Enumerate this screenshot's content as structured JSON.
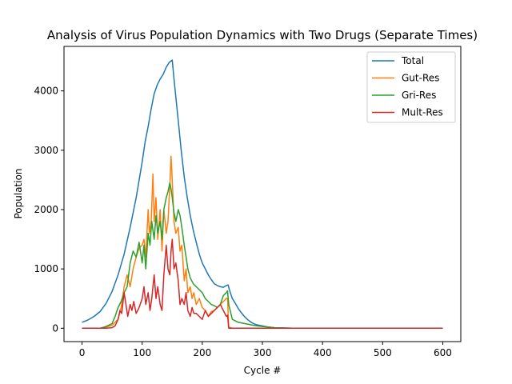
{
  "chart_data": {
    "type": "line",
    "title": "Analysis of Virus Population Dynamics with Two Drugs (Separate Times)",
    "xlabel": "Cycle #",
    "ylabel": "Population",
    "xlim": [
      -30,
      630
    ],
    "ylim": [
      -225,
      4750
    ],
    "xticks": [
      0,
      100,
      200,
      300,
      400,
      500,
      600
    ],
    "yticks": [
      0,
      1000,
      2000,
      3000,
      4000
    ],
    "legend": {
      "placement": "top-right"
    },
    "grid": false,
    "series": [
      {
        "name": "Total",
        "color": "#1f77b4",
        "points": [
          [
            0,
            100
          ],
          [
            10,
            140
          ],
          [
            20,
            200
          ],
          [
            30,
            280
          ],
          [
            40,
            420
          ],
          [
            50,
            620
          ],
          [
            60,
            900
          ],
          [
            70,
            1250
          ],
          [
            80,
            1700
          ],
          [
            90,
            2200
          ],
          [
            100,
            2800
          ],
          [
            105,
            3150
          ],
          [
            110,
            3400
          ],
          [
            115,
            3700
          ],
          [
            120,
            3950
          ],
          [
            125,
            4100
          ],
          [
            130,
            4200
          ],
          [
            135,
            4280
          ],
          [
            140,
            4400
          ],
          [
            145,
            4480
          ],
          [
            150,
            4520
          ],
          [
            152,
            4300
          ],
          [
            155,
            4000
          ],
          [
            160,
            3500
          ],
          [
            165,
            3000
          ],
          [
            170,
            2550
          ],
          [
            175,
            2200
          ],
          [
            180,
            1900
          ],
          [
            185,
            1650
          ],
          [
            190,
            1450
          ],
          [
            195,
            1250
          ],
          [
            200,
            1100
          ],
          [
            205,
            1000
          ],
          [
            210,
            900
          ],
          [
            215,
            820
          ],
          [
            220,
            750
          ],
          [
            225,
            720
          ],
          [
            230,
            700
          ],
          [
            235,
            690
          ],
          [
            240,
            720
          ],
          [
            243,
            730
          ],
          [
            245,
            650
          ],
          [
            250,
            500
          ],
          [
            255,
            420
          ],
          [
            260,
            330
          ],
          [
            265,
            260
          ],
          [
            270,
            200
          ],
          [
            275,
            150
          ],
          [
            280,
            110
          ],
          [
            285,
            80
          ],
          [
            290,
            60
          ],
          [
            300,
            40
          ],
          [
            310,
            20
          ],
          [
            320,
            10
          ],
          [
            330,
            5
          ],
          [
            350,
            2
          ],
          [
            400,
            0
          ],
          [
            500,
            0
          ],
          [
            600,
            0
          ]
        ]
      },
      {
        "name": "Gut-Res",
        "color": "#ff7f0e",
        "points": [
          [
            0,
            0
          ],
          [
            20,
            0
          ],
          [
            30,
            0
          ],
          [
            40,
            20
          ],
          [
            50,
            50
          ],
          [
            60,
            150
          ],
          [
            65,
            350
          ],
          [
            70,
            700
          ],
          [
            75,
            900
          ],
          [
            80,
            700
          ],
          [
            85,
            1000
          ],
          [
            90,
            1200
          ],
          [
            95,
            1350
          ],
          [
            100,
            1400
          ],
          [
            103,
            1500
          ],
          [
            106,
            1200
          ],
          [
            110,
            2000
          ],
          [
            112,
            1600
          ],
          [
            115,
            1800
          ],
          [
            118,
            2600
          ],
          [
            120,
            1800
          ],
          [
            123,
            2200
          ],
          [
            126,
            1500
          ],
          [
            130,
            2000
          ],
          [
            133,
            1300
          ],
          [
            136,
            2000
          ],
          [
            140,
            1600
          ],
          [
            143,
            1800
          ],
          [
            146,
            2400
          ],
          [
            148,
            2900
          ],
          [
            150,
            2500
          ],
          [
            153,
            1800
          ],
          [
            156,
            1600
          ],
          [
            160,
            1700
          ],
          [
            163,
            1300
          ],
          [
            166,
            1400
          ],
          [
            170,
            800
          ],
          [
            173,
            1000
          ],
          [
            176,
            600
          ],
          [
            180,
            700
          ],
          [
            183,
            500
          ],
          [
            186,
            600
          ],
          [
            190,
            400
          ],
          [
            195,
            500
          ],
          [
            200,
            350
          ],
          [
            205,
            300
          ],
          [
            210,
            200
          ],
          [
            215,
            280
          ],
          [
            220,
            300
          ],
          [
            225,
            350
          ],
          [
            230,
            400
          ],
          [
            235,
            450
          ],
          [
            240,
            500
          ],
          [
            242,
            510
          ],
          [
            244,
            20
          ],
          [
            250,
            0
          ],
          [
            600,
            0
          ]
        ]
      },
      {
        "name": "Gri-Res",
        "color": "#2ca02c",
        "points": [
          [
            0,
            0
          ],
          [
            30,
            0
          ],
          [
            40,
            30
          ],
          [
            50,
            80
          ],
          [
            55,
            200
          ],
          [
            60,
            350
          ],
          [
            65,
            450
          ],
          [
            70,
            600
          ],
          [
            75,
            700
          ],
          [
            80,
            1100
          ],
          [
            85,
            1300
          ],
          [
            90,
            1200
          ],
          [
            95,
            1450
          ],
          [
            100,
            1100
          ],
          [
            103,
            1400
          ],
          [
            106,
            1000
          ],
          [
            110,
            1600
          ],
          [
            113,
            1400
          ],
          [
            116,
            1800
          ],
          [
            120,
            1500
          ],
          [
            123,
            1900
          ],
          [
            126,
            1600
          ],
          [
            130,
            1800
          ],
          [
            133,
            1500
          ],
          [
            136,
            2000
          ],
          [
            140,
            2200
          ],
          [
            143,
            2300
          ],
          [
            146,
            2450
          ],
          [
            148,
            2350
          ],
          [
            150,
            2200
          ],
          [
            153,
            1950
          ],
          [
            156,
            1800
          ],
          [
            160,
            2000
          ],
          [
            163,
            1900
          ],
          [
            166,
            1700
          ],
          [
            170,
            1400
          ],
          [
            173,
            1200
          ],
          [
            176,
            1000
          ],
          [
            180,
            850
          ],
          [
            185,
            750
          ],
          [
            190,
            700
          ],
          [
            195,
            650
          ],
          [
            200,
            600
          ],
          [
            205,
            500
          ],
          [
            210,
            450
          ],
          [
            215,
            400
          ],
          [
            220,
            380
          ],
          [
            225,
            350
          ],
          [
            230,
            400
          ],
          [
            235,
            550
          ],
          [
            240,
            600
          ],
          [
            242,
            630
          ],
          [
            244,
            400
          ],
          [
            250,
            150
          ],
          [
            260,
            100
          ],
          [
            270,
            80
          ],
          [
            280,
            60
          ],
          [
            290,
            40
          ],
          [
            300,
            30
          ],
          [
            310,
            20
          ],
          [
            320,
            10
          ],
          [
            330,
            5
          ],
          [
            350,
            0
          ],
          [
            600,
            0
          ]
        ]
      },
      {
        "name": "Mult-Res",
        "color": "#d62728",
        "points": [
          [
            0,
            0
          ],
          [
            40,
            0
          ],
          [
            50,
            10
          ],
          [
            55,
            40
          ],
          [
            60,
            150
          ],
          [
            63,
            300
          ],
          [
            66,
            250
          ],
          [
            70,
            600
          ],
          [
            73,
            400
          ],
          [
            76,
            200
          ],
          [
            80,
            400
          ],
          [
            83,
            300
          ],
          [
            86,
            450
          ],
          [
            90,
            250
          ],
          [
            95,
            350
          ],
          [
            100,
            500
          ],
          [
            103,
            700
          ],
          [
            106,
            400
          ],
          [
            110,
            600
          ],
          [
            113,
            300
          ],
          [
            116,
            500
          ],
          [
            120,
            900
          ],
          [
            123,
            500
          ],
          [
            126,
            700
          ],
          [
            130,
            400
          ],
          [
            133,
            300
          ],
          [
            136,
            900
          ],
          [
            140,
            1400
          ],
          [
            143,
            1000
          ],
          [
            146,
            900
          ],
          [
            148,
            1300
          ],
          [
            150,
            1500
          ],
          [
            153,
            1000
          ],
          [
            156,
            1100
          ],
          [
            160,
            800
          ],
          [
            163,
            400
          ],
          [
            166,
            500
          ],
          [
            170,
            400
          ],
          [
            173,
            600
          ],
          [
            176,
            300
          ],
          [
            180,
            200
          ],
          [
            183,
            350
          ],
          [
            186,
            250
          ],
          [
            190,
            250
          ],
          [
            195,
            200
          ],
          [
            200,
            150
          ],
          [
            205,
            300
          ],
          [
            210,
            200
          ],
          [
            215,
            250
          ],
          [
            220,
            300
          ],
          [
            225,
            350
          ],
          [
            230,
            400
          ],
          [
            235,
            300
          ],
          [
            240,
            200
          ],
          [
            242,
            220
          ],
          [
            244,
            0
          ],
          [
            600,
            0
          ]
        ]
      }
    ]
  }
}
